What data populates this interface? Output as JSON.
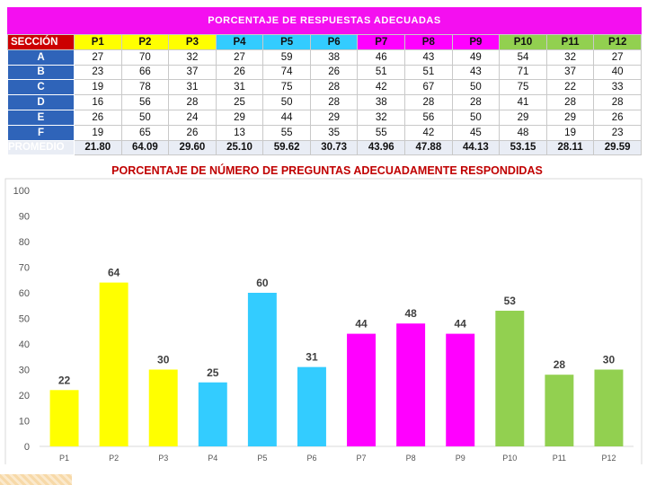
{
  "sheet": {
    "title": "PORCENTAJE DE RESPUESTAS ADECUADAS",
    "table": {
      "section_header": "SECCIÓN",
      "columns": [
        "P1",
        "P2",
        "P3",
        "P4",
        "P5",
        "P6",
        "P7",
        "P8",
        "P9",
        "P10",
        "P11",
        "P12"
      ],
      "rows": [
        {
          "section": "A",
          "values": [
            "27",
            "70",
            "32",
            "27",
            "59",
            "38",
            "46",
            "43",
            "49",
            "54",
            "32",
            "27"
          ]
        },
        {
          "section": "B",
          "values": [
            "23",
            "66",
            "37",
            "26",
            "74",
            "26",
            "51",
            "51",
            "43",
            "71",
            "37",
            "40"
          ]
        },
        {
          "section": "C",
          "values": [
            "19",
            "78",
            "31",
            "31",
            "75",
            "28",
            "42",
            "67",
            "50",
            "75",
            "22",
            "33"
          ]
        },
        {
          "section": "D",
          "values": [
            "16",
            "56",
            "28",
            "25",
            "50",
            "28",
            "38",
            "28",
            "28",
            "41",
            "28",
            "28"
          ]
        },
        {
          "section": "E",
          "values": [
            "26",
            "50",
            "24",
            "29",
            "44",
            "29",
            "32",
            "56",
            "50",
            "29",
            "29",
            "26"
          ]
        },
        {
          "section": "F",
          "values": [
            "19",
            "65",
            "26",
            "13",
            "55",
            "35",
            "55",
            "42",
            "45",
            "48",
            "19",
            "23"
          ]
        }
      ],
      "average": {
        "label": "PROMEDIO",
        "values": [
          "21.80",
          "64.09",
          "29.60",
          "25.10",
          "59.62",
          "30.73",
          "43.96",
          "47.88",
          "44.13",
          "53.15",
          "28.11",
          "29.59"
        ]
      }
    },
    "colors": {
      "yellow": "#ffff00",
      "cyan": "#33ccff",
      "magenta": "#ff00ff",
      "green": "#92d050",
      "header_red": "#cc0000",
      "section_blue": "#2f64b9",
      "title_magenta": "#f40ff0"
    }
  },
  "chart_data": {
    "type": "bar",
    "title": "PORCENTAJE DE NÚMERO DE PREGUNTAS ADECUADAMENTE RESPONDIDAS",
    "categories": [
      "P1",
      "P2",
      "P3",
      "P4",
      "P5",
      "P6",
      "P7",
      "P8",
      "P9",
      "P10",
      "P11",
      "P12"
    ],
    "values": [
      22,
      64,
      30,
      25,
      60,
      31,
      44,
      48,
      44,
      53,
      28,
      30
    ],
    "bar_colors": [
      "#ffff00",
      "#ffff00",
      "#ffff00",
      "#33ccff",
      "#33ccff",
      "#33ccff",
      "#ff00ff",
      "#ff00ff",
      "#ff00ff",
      "#92d050",
      "#92d050",
      "#92d050"
    ],
    "ylim": [
      0,
      100
    ],
    "yticks": [
      0,
      10,
      20,
      30,
      40,
      50,
      60,
      70,
      80,
      90,
      100
    ],
    "grid": false,
    "data_labels": true
  }
}
